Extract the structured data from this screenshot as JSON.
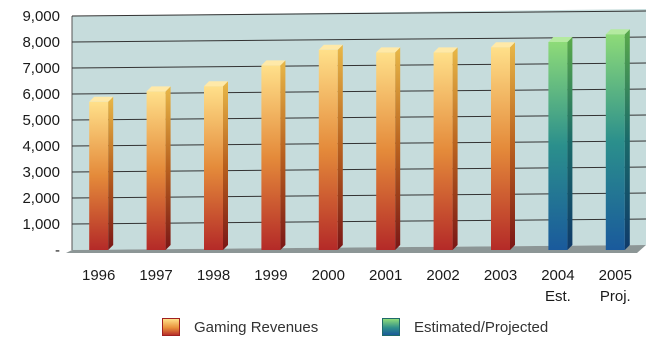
{
  "chart_data": {
    "type": "bar",
    "categories": [
      [
        "1996"
      ],
      [
        "1997"
      ],
      [
        "1998"
      ],
      [
        "1999"
      ],
      [
        "2000"
      ],
      [
        "2001"
      ],
      [
        "2002"
      ],
      [
        "2003"
      ],
      [
        "2004",
        "Est."
      ],
      [
        "2005",
        "Proj."
      ]
    ],
    "series": [
      {
        "name": "Gaming Revenues",
        "values": [
          5700,
          6100,
          6300,
          7100,
          7700,
          7600,
          7600,
          7800,
          null,
          null
        ]
      },
      {
        "name": "Estimated/Projected",
        "values": [
          null,
          null,
          null,
          null,
          null,
          null,
          null,
          null,
          8000,
          8300
        ]
      }
    ],
    "y_ticks": [
      "-",
      "1,000",
      "2,000",
      "3,000",
      "4,000",
      "5,000",
      "6,000",
      "7,000",
      "8,000",
      "9,000"
    ],
    "ylim": [
      0,
      9000
    ],
    "grid": true,
    "legend_placement": "bottom",
    "colors": {
      "gaming_top": "#ffe08a",
      "gaming_mid": "#e48a3a",
      "gaming_bottom": "#b42a28",
      "est_top": "#8edb78",
      "est_mid": "#2b8f8c",
      "est_bottom": "#1a5a9c",
      "plot_bg": "#c6dcdc",
      "floor": "#8c9696"
    }
  },
  "legend": [
    {
      "label": "Gaming Revenues",
      "key": "gaming"
    },
    {
      "label": "Estimated/Projected",
      "key": "est"
    }
  ]
}
